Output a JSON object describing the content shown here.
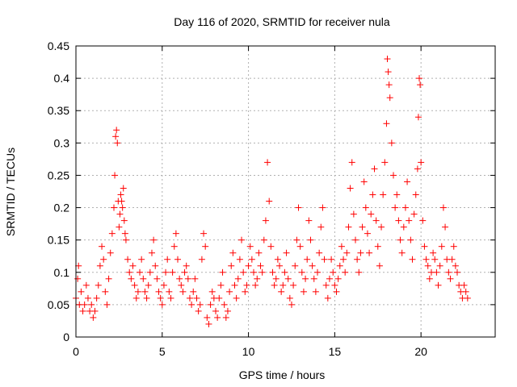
{
  "chart_data": {
    "type": "scatter",
    "title": "Day 116 of 2020, SRMTID for receiver nula",
    "xlabel": "GPS time / hours",
    "ylabel": "SRMTID / TECUs",
    "xlim": [
      0,
      24.3
    ],
    "ylim": [
      0,
      0.45
    ],
    "xticks": [
      0,
      5,
      10,
      15,
      20
    ],
    "xtick_labels": [
      "0",
      "5",
      "10",
      "15",
      "20"
    ],
    "yticks": [
      0,
      0.05,
      0.1,
      0.15,
      0.2,
      0.25,
      0.3,
      0.35,
      0.4,
      0.45
    ],
    "ytick_labels": [
      "0",
      "0.05",
      "0.1",
      "0.15",
      "0.2",
      "0.25",
      "0.3",
      "0.35",
      "0.4",
      "0.45"
    ],
    "grid": true,
    "marker": "plus",
    "series": [
      {
        "name": "SRMTID",
        "color": "#ff0000",
        "x": [
          0.0,
          0.1,
          0.15,
          0.2,
          0.3,
          0.4,
          0.5,
          0.6,
          0.7,
          0.8,
          0.9,
          1.0,
          1.1,
          1.2,
          1.3,
          1.4,
          1.5,
          1.6,
          1.7,
          1.8,
          1.9,
          2.0,
          2.1,
          2.2,
          2.25,
          2.3,
          2.35,
          2.4,
          2.45,
          2.5,
          2.55,
          2.6,
          2.65,
          2.7,
          2.75,
          2.8,
          2.85,
          2.9,
          3.0,
          3.1,
          3.2,
          3.3,
          3.4,
          3.5,
          3.6,
          3.7,
          3.8,
          3.9,
          4.0,
          4.1,
          4.2,
          4.3,
          4.4,
          4.5,
          4.6,
          4.7,
          4.8,
          4.9,
          5.0,
          5.1,
          5.2,
          5.3,
          5.4,
          5.5,
          5.6,
          5.7,
          5.8,
          5.9,
          6.0,
          6.1,
          6.2,
          6.3,
          6.4,
          6.5,
          6.6,
          6.7,
          6.8,
          6.9,
          7.0,
          7.1,
          7.2,
          7.3,
          7.4,
          7.5,
          7.6,
          7.7,
          7.8,
          7.9,
          8.0,
          8.1,
          8.2,
          8.3,
          8.4,
          8.5,
          8.6,
          8.7,
          8.8,
          8.9,
          9.0,
          9.1,
          9.2,
          9.3,
          9.4,
          9.5,
          9.6,
          9.7,
          9.8,
          9.9,
          10.0,
          10.1,
          10.2,
          10.3,
          10.4,
          10.5,
          10.6,
          10.7,
          10.8,
          10.9,
          11.0,
          11.1,
          11.2,
          11.3,
          11.4,
          11.5,
          11.6,
          11.7,
          11.8,
          11.9,
          12.0,
          12.1,
          12.2,
          12.3,
          12.4,
          12.5,
          12.6,
          12.7,
          12.8,
          12.9,
          13.0,
          13.1,
          13.2,
          13.3,
          13.4,
          13.5,
          13.6,
          13.7,
          13.8,
          13.9,
          14.0,
          14.1,
          14.2,
          14.3,
          14.4,
          14.5,
          14.6,
          14.7,
          14.8,
          14.9,
          15.0,
          15.1,
          15.2,
          15.3,
          15.4,
          15.5,
          15.6,
          15.7,
          15.8,
          15.9,
          16.0,
          16.1,
          16.2,
          16.3,
          16.4,
          16.5,
          16.6,
          16.7,
          16.8,
          16.9,
          17.0,
          17.1,
          17.2,
          17.3,
          17.4,
          17.5,
          17.6,
          17.7,
          17.8,
          17.9,
          18.0,
          18.05,
          18.1,
          18.15,
          18.2,
          18.3,
          18.4,
          18.5,
          18.6,
          18.7,
          18.8,
          18.9,
          19.0,
          19.1,
          19.2,
          19.3,
          19.4,
          19.5,
          19.6,
          19.7,
          19.8,
          19.85,
          19.9,
          19.95,
          20.0,
          20.1,
          20.2,
          20.3,
          20.4,
          20.5,
          20.6,
          20.7,
          20.8,
          20.9,
          21.0,
          21.1,
          21.2,
          21.3,
          21.4,
          21.5,
          21.6,
          21.7,
          21.8,
          21.9,
          22.0,
          22.1,
          22.2,
          22.3,
          22.4,
          22.5,
          22.6,
          22.7
        ],
        "y": [
          0.06,
          0.09,
          0.11,
          0.05,
          0.07,
          0.04,
          0.05,
          0.08,
          0.06,
          0.04,
          0.05,
          0.03,
          0.04,
          0.06,
          0.08,
          0.11,
          0.14,
          0.12,
          0.07,
          0.05,
          0.09,
          0.13,
          0.16,
          0.2,
          0.25,
          0.31,
          0.32,
          0.3,
          0.21,
          0.17,
          0.19,
          0.22,
          0.21,
          0.2,
          0.23,
          0.18,
          0.16,
          0.15,
          0.12,
          0.1,
          0.09,
          0.11,
          0.08,
          0.06,
          0.07,
          0.1,
          0.12,
          0.09,
          0.07,
          0.06,
          0.08,
          0.1,
          0.13,
          0.15,
          0.11,
          0.09,
          0.07,
          0.06,
          0.05,
          0.08,
          0.1,
          0.12,
          0.07,
          0.06,
          0.1,
          0.14,
          0.16,
          0.12,
          0.09,
          0.08,
          0.07,
          0.1,
          0.11,
          0.09,
          0.06,
          0.05,
          0.07,
          0.09,
          0.06,
          0.04,
          0.05,
          0.12,
          0.16,
          0.14,
          0.03,
          0.02,
          0.05,
          0.07,
          0.06,
          0.04,
          0.03,
          0.06,
          0.08,
          0.1,
          0.05,
          0.03,
          0.04,
          0.07,
          0.11,
          0.13,
          0.08,
          0.06,
          0.09,
          0.12,
          0.15,
          0.1,
          0.07,
          0.08,
          0.11,
          0.14,
          0.12,
          0.1,
          0.08,
          0.09,
          0.13,
          0.11,
          0.1,
          0.15,
          0.18,
          0.27,
          0.21,
          0.14,
          0.1,
          0.08,
          0.09,
          0.12,
          0.11,
          0.07,
          0.08,
          0.1,
          0.13,
          0.09,
          0.06,
          0.05,
          0.08,
          0.11,
          0.15,
          0.2,
          0.14,
          0.1,
          0.07,
          0.09,
          0.12,
          0.18,
          0.15,
          0.11,
          0.09,
          0.07,
          0.1,
          0.13,
          0.17,
          0.2,
          0.12,
          0.08,
          0.06,
          0.09,
          0.12,
          0.1,
          0.08,
          0.07,
          0.09,
          0.11,
          0.14,
          0.12,
          0.1,
          0.13,
          0.17,
          0.23,
          0.27,
          0.19,
          0.15,
          0.12,
          0.1,
          0.13,
          0.17,
          0.24,
          0.2,
          0.16,
          0.13,
          0.19,
          0.22,
          0.26,
          0.18,
          0.14,
          0.11,
          0.17,
          0.22,
          0.27,
          0.33,
          0.43,
          0.41,
          0.39,
          0.37,
          0.3,
          0.25,
          0.2,
          0.22,
          0.18,
          0.15,
          0.13,
          0.17,
          0.2,
          0.24,
          0.18,
          0.15,
          0.12,
          0.19,
          0.22,
          0.26,
          0.34,
          0.4,
          0.39,
          0.27,
          0.18,
          0.14,
          0.12,
          0.11,
          0.09,
          0.1,
          0.13,
          0.12,
          0.1,
          0.08,
          0.11,
          0.14,
          0.2,
          0.17,
          0.12,
          0.1,
          0.09,
          0.12,
          0.14,
          0.11,
          0.1,
          0.08,
          0.07,
          0.06,
          0.08,
          0.07,
          0.06
        ]
      }
    ]
  }
}
